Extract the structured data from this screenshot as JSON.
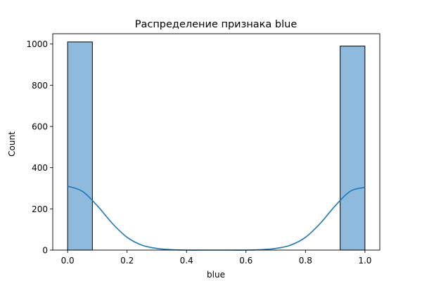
{
  "chart_data": {
    "type": "bar",
    "title": "Распределение признака blue",
    "xlabel": "blue",
    "ylabel": "Count",
    "xlim": [
      -0.05,
      1.05
    ],
    "ylim": [
      0,
      1050
    ],
    "xticks": [
      0.0,
      0.2,
      0.4,
      0.6,
      0.8,
      1.0
    ],
    "xtick_labels": [
      "0.0",
      "0.2",
      "0.4",
      "0.6",
      "0.8",
      "1.0"
    ],
    "yticks": [
      0,
      200,
      400,
      600,
      800,
      1000
    ],
    "ytick_labels": [
      "0",
      "200",
      "400",
      "600",
      "800",
      "1000"
    ],
    "grid": false,
    "bins": [
      {
        "x0": 0.0,
        "x1": 0.0833,
        "count": 1010
      },
      {
        "x0": 0.9167,
        "x1": 1.0,
        "count": 990
      }
    ],
    "kde": {
      "x": [
        0.0,
        0.05,
        0.1,
        0.15,
        0.2,
        0.25,
        0.3,
        0.35,
        0.4,
        0.45,
        0.5,
        0.55,
        0.6,
        0.65,
        0.7,
        0.75,
        0.8,
        0.85,
        0.9,
        0.95,
        1.0
      ],
      "y": [
        310,
        285,
        215,
        130,
        62,
        24,
        8,
        2,
        0,
        0,
        0,
        0,
        0,
        2,
        8,
        24,
        62,
        130,
        215,
        285,
        305
      ]
    },
    "colors": {
      "bar_fill": "#8ebbdd",
      "bar_edge": "#000000",
      "kde_line": "#1f77b4"
    }
  }
}
